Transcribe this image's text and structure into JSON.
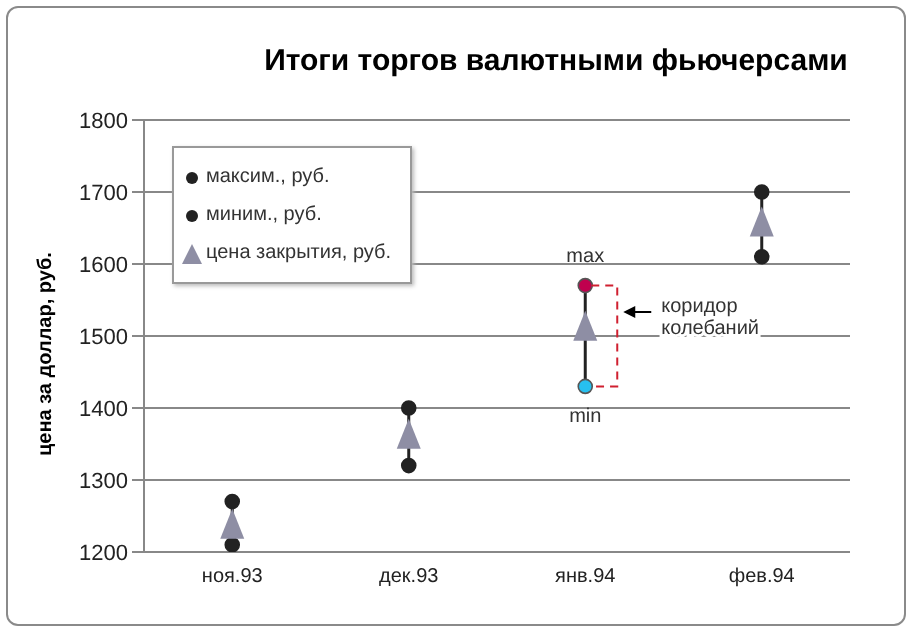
{
  "chart_data": {
    "type": "scatter",
    "title": "Итоги торгов валютными фьючерсами",
    "ylabel": "цена за доллар, руб.",
    "categories": [
      "ноя.93",
      "дек.93",
      "янв.94",
      "фев.94"
    ],
    "series": [
      {
        "name": "максим., руб.",
        "marker": "circle",
        "color": "#222222",
        "values": [
          1270,
          1400,
          1570,
          1700
        ],
        "colors": [
          "#222222",
          "#222222",
          "#c0004e",
          "#222222"
        ]
      },
      {
        "name": "миним., руб.",
        "marker": "circle",
        "color": "#222222",
        "values": [
          1210,
          1320,
          1430,
          1610
        ],
        "colors": [
          "#222222",
          "#222222",
          "#27c0f0",
          "#222222"
        ]
      },
      {
        "name": "цена закрытия,  руб.",
        "marker": "triangle",
        "color": "#8e8ea4",
        "values": [
          1235,
          1360,
          1510,
          1655
        ]
      }
    ],
    "ylim": [
      1200,
      1800
    ],
    "yticks": [
      1200,
      1300,
      1400,
      1500,
      1600,
      1700,
      1800
    ],
    "grid": "y",
    "legend": "top left",
    "annotations": [
      {
        "text": "max",
        "x": "янв.94",
        "y": 1570
      },
      {
        "text": "min",
        "x": "янв.94",
        "y": 1430
      },
      "коридор колебаний"
    ]
  }
}
